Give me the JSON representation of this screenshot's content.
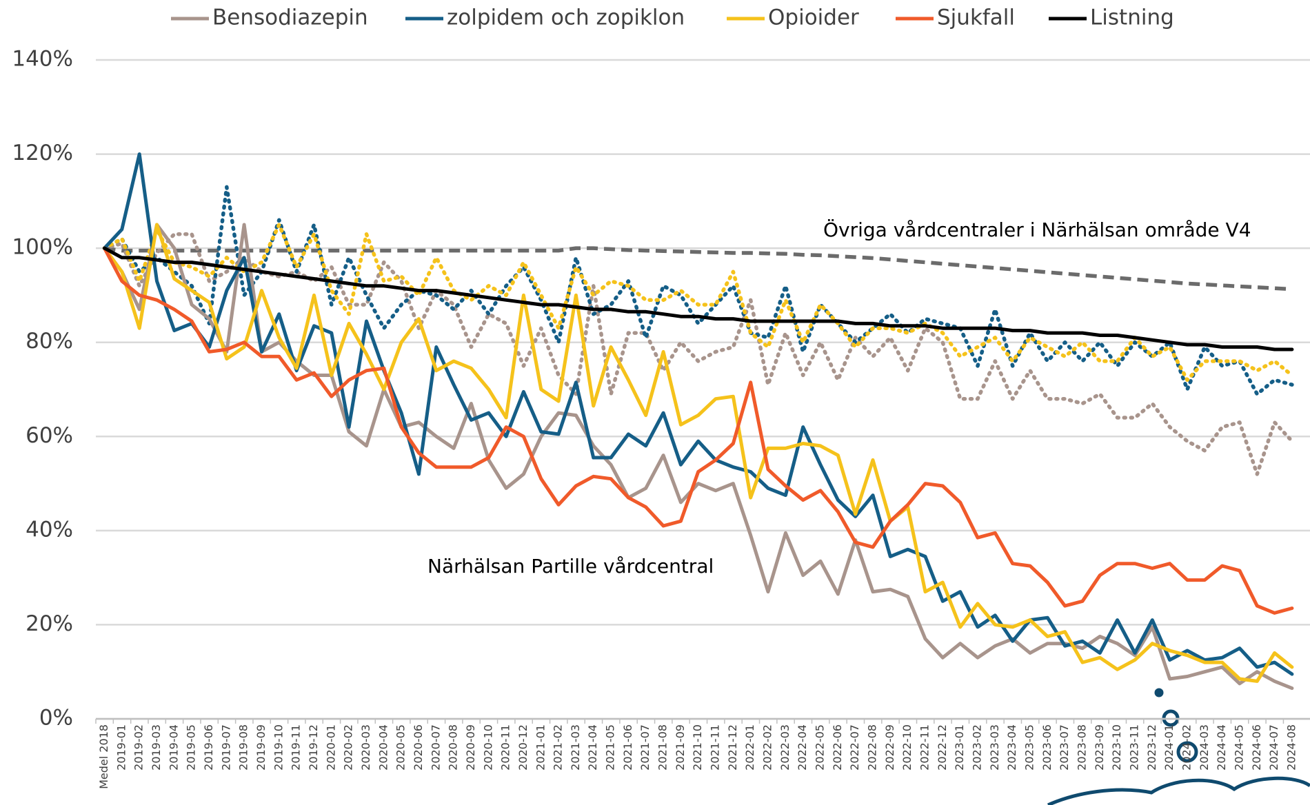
{
  "chart_data": {
    "type": "line",
    "categories": [
      "Medel 2018",
      "2019-01",
      "2019-02",
      "2019-03",
      "2019-04",
      "2019-05",
      "2019-06",
      "2019-07",
      "2019-08",
      "2019-09",
      "2019-10",
      "2019-11",
      "2019-12",
      "2020-01",
      "2020-02",
      "2020-03",
      "2020-04",
      "2020-05",
      "2020-06",
      "2020-07",
      "2020-08",
      "2020-09",
      "2020-10",
      "2020-11",
      "2020-12",
      "2021-01",
      "2021-02",
      "2021-03",
      "2021-04",
      "2021-05",
      "2021-06",
      "2021-07",
      "2021-08",
      "2021-09",
      "2021-10",
      "2021-11",
      "2021-12",
      "2022-01",
      "2022-02",
      "2022-03",
      "2022-04",
      "2022-05",
      "2022-06",
      "2022-07",
      "2022-08",
      "2022-09",
      "2022-10",
      "2022-11",
      "2022-12",
      "2023-01",
      "2023-02",
      "2023-03",
      "2023-04",
      "2023-05",
      "2023-06",
      "2023-07",
      "2023-08",
      "2023-09",
      "2023-10",
      "2023-11",
      "2023-12",
      "2024-01",
      "2024-02",
      "2024-03",
      "2024-04",
      "2024-05",
      "2024-06",
      "2024-07",
      "2024-08"
    ],
    "series": [
      {
        "color": "#6b6b6b",
        "style": "dashed",
        "values": [
          100,
          99.5,
          99.5,
          99.5,
          99.5,
          99.5,
          99.5,
          99.5,
          99.5,
          99.5,
          99.5,
          99.5,
          99.5,
          99.5,
          99.5,
          99.5,
          99.5,
          99.5,
          99.5,
          99.5,
          99.5,
          99.5,
          99.5,
          99.5,
          99.5,
          99.5,
          99.5,
          100,
          100,
          99.8,
          99.6,
          99.5,
          99.4,
          99.3,
          99.2,
          99.1,
          99,
          99,
          98.9,
          98.8,
          98.6,
          98.5,
          98.3,
          98.1,
          97.9,
          97.6,
          97.3,
          97,
          96.7,
          96.4,
          96.1,
          95.8,
          95.5,
          95.2,
          94.9,
          94.6,
          94.3,
          94,
          93.7,
          93.4,
          93.1,
          92.8,
          92.5,
          92.3,
          92.1,
          91.9,
          91.7,
          91.5,
          91.3
        ]
      },
      {
        "color": "#a8948c",
        "style": "dotted",
        "values": [
          100,
          101,
          92,
          99,
          103,
          103,
          93,
          95,
          98,
          95,
          94,
          95,
          93,
          96,
          88,
          88,
          97,
          93,
          83,
          91,
          88,
          79,
          86,
          84,
          75,
          83,
          73,
          69,
          92,
          69,
          82,
          82,
          74,
          80,
          76,
          78,
          79,
          89,
          71,
          82,
          73,
          80,
          72,
          81,
          77,
          81,
          74,
          83,
          80,
          68,
          68,
          76,
          68,
          74,
          68,
          68,
          67,
          69,
          64,
          64,
          67,
          62,
          59,
          57,
          62,
          63,
          52,
          63,
          59
        ]
      },
      {
        "color": "#155e87",
        "style": "dotted",
        "values": [
          100,
          102,
          95,
          98,
          95,
          92,
          84,
          113,
          90,
          95,
          106,
          95,
          105,
          88,
          98,
          90,
          83,
          88,
          91,
          90,
          87,
          91,
          86,
          92,
          96,
          89,
          80,
          98,
          86,
          88,
          93,
          81,
          92,
          90,
          84,
          88,
          92,
          82,
          81,
          92,
          78,
          88,
          84,
          80,
          83,
          86,
          82,
          85,
          84,
          83,
          75,
          87,
          75,
          82,
          76,
          80,
          76,
          80,
          75,
          80,
          77,
          80,
          70,
          79,
          75,
          76,
          69,
          72,
          71
        ]
      },
      {
        "color": "#f5c21b",
        "style": "dotted",
        "values": [
          100,
          102,
          93,
          104,
          97,
          96,
          94,
          98,
          95,
          97,
          105,
          96,
          103,
          91,
          86,
          103,
          93,
          94,
          90,
          98,
          91,
          89,
          92,
          90,
          97,
          90,
          83,
          96,
          90,
          93,
          92,
          89,
          89,
          91,
          88,
          88,
          95,
          82,
          79,
          89,
          80,
          88,
          84,
          79,
          83,
          83,
          82,
          84,
          82,
          77,
          79,
          81,
          76,
          81,
          79,
          77,
          80,
          76,
          76,
          81,
          77,
          79,
          72,
          76,
          76,
          76,
          74,
          76,
          73
        ]
      },
      {
        "name": "Bensodiazepin",
        "color": "#a8948c",
        "style": "solid",
        "values": [
          100,
          95,
          87,
          105,
          100,
          88,
          85,
          78,
          105,
          78,
          80,
          76,
          73,
          73,
          61,
          58,
          70,
          62,
          63,
          60,
          57.5,
          67,
          55,
          49,
          52,
          60,
          65,
          64.5,
          58,
          54,
          47,
          49,
          56,
          46,
          50,
          48.5,
          50,
          39,
          27,
          39.5,
          30.5,
          33.5,
          26.5,
          38,
          27,
          27.5,
          26,
          17,
          13,
          16,
          13,
          15.5,
          17,
          14,
          16,
          16,
          15,
          17.5,
          16,
          13.5,
          19.5,
          8.5,
          9,
          10,
          11,
          7.5,
          10,
          8,
          6.5
        ]
      },
      {
        "name": "zolpidem och zopiklon",
        "color": "#155e87",
        "style": "solid",
        "values": [
          100,
          104,
          120,
          93,
          82.5,
          84,
          79,
          91,
          98,
          78,
          86,
          74,
          83.5,
          82,
          62,
          84.5,
          74,
          65,
          52,
          79,
          71,
          63.5,
          65,
          60,
          69.5,
          61,
          60.5,
          71.5,
          55.5,
          55.5,
          60.5,
          58,
          65,
          54,
          59,
          55,
          53.5,
          52.5,
          49,
          47.5,
          62,
          54,
          46.5,
          43,
          47.5,
          34.5,
          36,
          34.5,
          25,
          27,
          19.5,
          22,
          16.5,
          21,
          21.5,
          15.5,
          16.5,
          14,
          21,
          14,
          21,
          12.5,
          14.5,
          12.5,
          13,
          15,
          11,
          12,
          9.5
        ]
      },
      {
        "name": "Opioider",
        "color": "#f5c21b",
        "style": "solid",
        "values": [
          100,
          95,
          83,
          105,
          93.5,
          91,
          88.5,
          76.5,
          79,
          91,
          81,
          74.5,
          90,
          73,
          84,
          77.5,
          70,
          80,
          85,
          74,
          76,
          74.5,
          70,
          64,
          90,
          70,
          67.5,
          90,
          66.5,
          79,
          72,
          64.5,
          78,
          62.5,
          64.5,
          68,
          68.5,
          47,
          57.5,
          57.5,
          58.5,
          58,
          56,
          43.5,
          55,
          42,
          45,
          27,
          29,
          19.5,
          24.5,
          20,
          19.5,
          21,
          17.5,
          18.5,
          12,
          13,
          10.5,
          12.5,
          16,
          14.5,
          13.5,
          12,
          12,
          8.5,
          8,
          14,
          11
        ]
      },
      {
        "name": "Sjukfall",
        "color": "#f05a2a",
        "style": "solid",
        "values": [
          100,
          93,
          90,
          89,
          87,
          84.5,
          78,
          78.5,
          80,
          77,
          77,
          72,
          73.5,
          68.5,
          72,
          74,
          74.5,
          62,
          56.5,
          53.5,
          53.5,
          53.5,
          55.5,
          62,
          60,
          51,
          45.5,
          49.5,
          51.5,
          51,
          47,
          45,
          41,
          42,
          52.5,
          55,
          58.5,
          71.5,
          53,
          49.5,
          46.5,
          48.5,
          44,
          37.5,
          36.5,
          42,
          45.5,
          50,
          49.5,
          46,
          38.5,
          39.5,
          33,
          32.5,
          29,
          24,
          25,
          30.5,
          33,
          33,
          32,
          33,
          29.5,
          29.5,
          32.5,
          31.5,
          24,
          22.5,
          23.5
        ]
      },
      {
        "name": "Listning",
        "color": "#000000",
        "style": "solid",
        "values": [
          100,
          98,
          98,
          97.5,
          97,
          97,
          96.5,
          96,
          95.5,
          95,
          94.5,
          94,
          93.5,
          93,
          92.5,
          92,
          92,
          91.5,
          91,
          91,
          90.5,
          90,
          89.5,
          89,
          88.5,
          88,
          88,
          87.5,
          87,
          87,
          86.5,
          86.5,
          86,
          85.5,
          85.5,
          85,
          85,
          84.5,
          84.5,
          84.5,
          84.5,
          84.5,
          84.5,
          84,
          84,
          83.5,
          83.5,
          83.5,
          83,
          83,
          83,
          83,
          82.5,
          82.5,
          82,
          82,
          82,
          81.5,
          81.5,
          81,
          80.5,
          80,
          79.5,
          79.5,
          79,
          79,
          79,
          78.5,
          78.5
        ]
      }
    ],
    "ylim": [
      0,
      140
    ],
    "yticks": [
      {
        "value": 0,
        "label": "0%"
      },
      {
        "value": 20,
        "label": "20%"
      },
      {
        "value": 40,
        "label": "40%"
      },
      {
        "value": 60,
        "label": "60%"
      },
      {
        "value": 80,
        "label": "80%"
      },
      {
        "value": 100,
        "label": "100%"
      },
      {
        "value": 120,
        "label": "120%"
      },
      {
        "value": 140,
        "label": "140%"
      }
    ],
    "grid": true,
    "legend": "top",
    "annotations": [
      "Övriga vårdcentraler i Närhälsan område V4",
      "Närhälsan Partille vårdcentral"
    ]
  }
}
